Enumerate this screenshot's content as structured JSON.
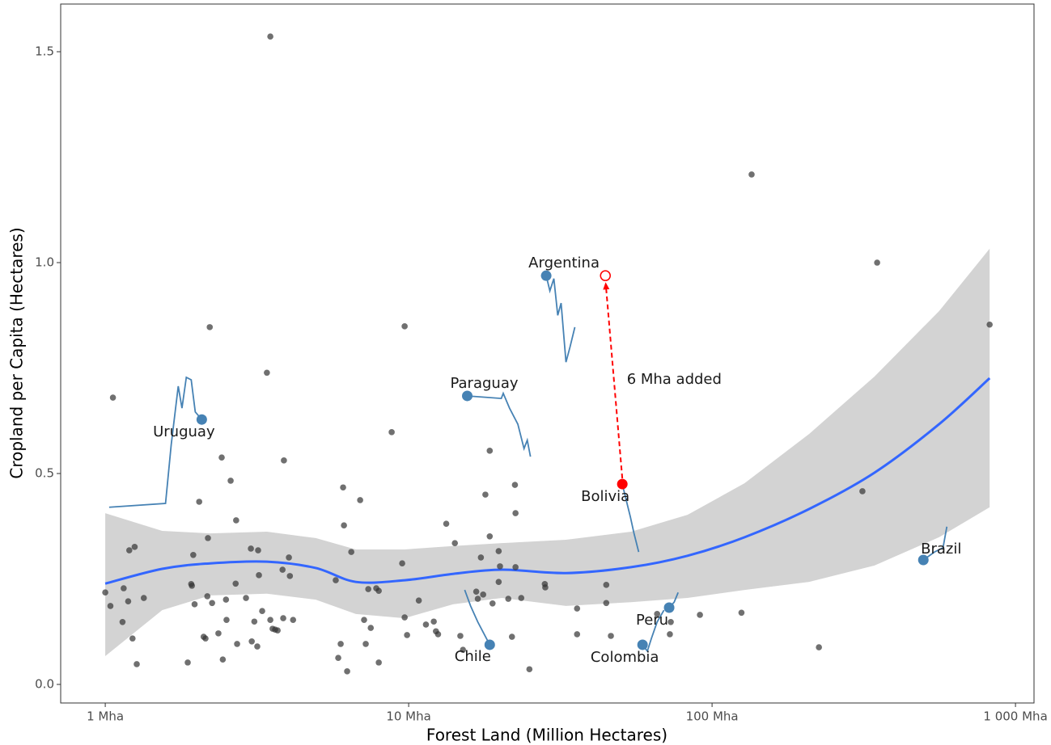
{
  "chart_data": {
    "type": "scatter",
    "x_label": "Forest Land (Million Hectares)",
    "y_label": "Cropland per Capita (Hectares)",
    "xlog": true,
    "xlim": [
      0.713,
      1151
    ],
    "ylim": [
      -0.044,
      1.613
    ],
    "xticks": [
      {
        "value": 1,
        "label": "1 Mha"
      },
      {
        "value": 10,
        "label": "10 Mha"
      },
      {
        "value": 100,
        "label": "100 Mha"
      },
      {
        "value": 1000,
        "label": "1 000 Mha"
      }
    ],
    "yticks": [
      {
        "value": 0,
        "label": "0.0"
      },
      {
        "value": 0.5,
        "label": "0.5"
      },
      {
        "value": 1,
        "label": "1.0"
      },
      {
        "value": 1.5,
        "label": "1.5"
      }
    ],
    "grid": false,
    "points": {
      "color": "#333333",
      "x": [
        1.0,
        1.04,
        1.06,
        1.14,
        1.15,
        1.19,
        1.2,
        1.25,
        1.23,
        1.27,
        1.34,
        1.87,
        1.92,
        1.93,
        1.95,
        1.97,
        2.04,
        2.11,
        2.14,
        2.17,
        2.18,
        2.21,
        2.25,
        2.36,
        2.42,
        2.44,
        2.5,
        2.51,
        2.59,
        2.69,
        2.7,
        2.72,
        2.91,
        3.02,
        3.04,
        3.1,
        3.17,
        3.19,
        3.21,
        3.29,
        3.41,
        3.5,
        3.56,
        3.63,
        3.7,
        3.84,
        3.86,
        3.88,
        4.03,
        4.06,
        4.16,
        5.75,
        5.86,
        5.97,
        6.08,
        6.12,
        6.27,
        6.47,
        6.92,
        7.13,
        7.22,
        7.36,
        7.5,
        7.82,
        7.97,
        7.97,
        8.79,
        9.52,
        9.7,
        9.7,
        9.88,
        10.8,
        11.4,
        12.1,
        12.3,
        12.5,
        13.3,
        14.2,
        14.8,
        15.1,
        16.7,
        16.9,
        17.3,
        17.6,
        17.9,
        18.5,
        18.5,
        18.9,
        19.8,
        19.8,
        20.0,
        21.3,
        21.9,
        22.4,
        22.5,
        22.5,
        23.5,
        25.0,
        28.1,
        28.2,
        35.9,
        35.9,
        44.8,
        44.8,
        46.4,
        65.9,
        72.6,
        73.1,
        91.2,
        125,
        135,
        225,
        313,
        350,
        822,
        3.5
      ],
      "y": [
        0.218,
        0.186,
        0.68,
        0.148,
        0.228,
        0.197,
        0.318,
        0.326,
        0.109,
        0.048,
        0.205,
        0.052,
        0.238,
        0.234,
        0.307,
        0.19,
        0.433,
        0.113,
        0.109,
        0.209,
        0.347,
        0.847,
        0.193,
        0.121,
        0.538,
        0.059,
        0.201,
        0.153,
        0.483,
        0.239,
        0.389,
        0.096,
        0.205,
        0.322,
        0.102,
        0.149,
        0.09,
        0.318,
        0.259,
        0.174,
        0.739,
        0.153,
        0.132,
        0.13,
        0.128,
        0.272,
        0.157,
        0.531,
        0.301,
        0.257,
        0.153,
        0.247,
        0.063,
        0.096,
        0.467,
        0.377,
        0.031,
        0.314,
        0.437,
        0.153,
        0.096,
        0.226,
        0.134,
        0.228,
        0.222,
        0.052,
        0.598,
        0.287,
        0.849,
        0.159,
        0.117,
        0.199,
        0.142,
        0.149,
        0.126,
        0.119,
        0.381,
        0.335,
        0.115,
        0.082,
        0.22,
        0.203,
        0.301,
        0.213,
        0.45,
        0.554,
        0.351,
        0.192,
        0.316,
        0.243,
        0.28,
        0.203,
        0.113,
        0.473,
        0.406,
        0.278,
        0.205,
        0.036,
        0.238,
        0.23,
        0.18,
        0.119,
        0.236,
        0.193,
        0.115,
        0.167,
        0.119,
        0.148,
        0.165,
        0.17,
        1.209,
        0.088,
        0.458,
        1.0,
        0.853,
        1.536
      ]
    },
    "smooth": {
      "color": "#3366ff",
      "band_color": "#d3d3d3",
      "x": [
        1.0,
        1.54,
        2.22,
        3.41,
        4.94,
        6.7,
        9.7,
        14.0,
        20.3,
        33.0,
        54.1,
        83.0,
        128,
        209,
        343,
        560,
        822
      ],
      "y": [
        0.239,
        0.274,
        0.287,
        0.291,
        0.276,
        0.243,
        0.247,
        0.262,
        0.272,
        0.264,
        0.278,
        0.305,
        0.349,
        0.416,
        0.502,
        0.617,
        0.726
      ],
      "lower": [
        0.067,
        0.176,
        0.211,
        0.215,
        0.201,
        0.167,
        0.157,
        0.19,
        0.205,
        0.186,
        0.195,
        0.205,
        0.224,
        0.243,
        0.282,
        0.349,
        0.42
      ],
      "upper": [
        0.406,
        0.364,
        0.358,
        0.362,
        0.347,
        0.32,
        0.32,
        0.328,
        0.335,
        0.343,
        0.362,
        0.402,
        0.477,
        0.594,
        0.73,
        0.885,
        1.033
      ]
    },
    "path_color": "#4682b4",
    "countries": [
      {
        "name": "Argentina",
        "color": "#4682b4",
        "x": 28.4,
        "y": 0.969,
        "path_x": [
          28.4,
          29.2,
          30.1,
          31.0,
          31.8,
          33.0,
          34.0,
          35.3
        ],
        "path_y": [
          0.969,
          0.933,
          0.962,
          0.875,
          0.904,
          0.764,
          0.799,
          0.847
        ]
      },
      {
        "name": "Paraguay",
        "color": "#4682b4",
        "x": 15.6,
        "y": 0.684,
        "path_x": [
          15.6,
          20.2,
          20.5,
          21.5,
          22.9,
          24.0,
          24.6,
          25.2
        ],
        "path_y": [
          0.684,
          0.678,
          0.69,
          0.655,
          0.617,
          0.559,
          0.579,
          0.54
        ]
      },
      {
        "name": "Uruguay",
        "color": "#4682b4",
        "x": 2.08,
        "y": 0.628,
        "path_x": [
          1.03,
          1.58,
          1.65,
          1.74,
          1.79,
          1.85,
          1.92,
          1.98,
          2.08
        ],
        "path_y": [
          0.42,
          0.429,
          0.569,
          0.707,
          0.655,
          0.728,
          0.722,
          0.646,
          0.628
        ]
      },
      {
        "name": "Bolivia",
        "color": "#ff0000",
        "x": 50.6,
        "y": 0.475,
        "path_x": [
          50.6,
          52.2,
          53.8,
          55.3,
          57.3
        ],
        "path_y": [
          0.475,
          0.435,
          0.397,
          0.358,
          0.314
        ]
      },
      {
        "name": "Brazil",
        "color": "#4682b4",
        "x": 497,
        "y": 0.295,
        "path_x": [
          497,
          541,
          577,
          594
        ],
        "path_y": [
          0.295,
          0.314,
          0.324,
          0.374
        ]
      },
      {
        "name": "Peru",
        "color": "#4682b4",
        "x": 72.2,
        "y": 0.182,
        "path_x": [
          72.2,
          75.0,
          77.3
        ],
        "path_y": [
          0.182,
          0.195,
          0.218
        ]
      },
      {
        "name": "Colombia",
        "color": "#4682b4",
        "x": 59.0,
        "y": 0.094,
        "path_x": [
          59.0,
          61.2,
          63.1,
          65.9,
          69.4
        ],
        "path_y": [
          0.094,
          0.079,
          0.109,
          0.148,
          0.176
        ]
      },
      {
        "name": "Chile",
        "color": "#4682b4",
        "x": 18.5,
        "y": 0.094,
        "path_x": [
          18.5,
          16.9,
          16.0,
          15.3
        ],
        "path_y": [
          0.094,
          0.148,
          0.186,
          0.224
        ]
      }
    ],
    "annotation": {
      "text": "6 Mha added",
      "color": "#ff0000",
      "x": [
        50.6,
        44.5
      ],
      "y": [
        0.475,
        0.969
      ]
    }
  }
}
